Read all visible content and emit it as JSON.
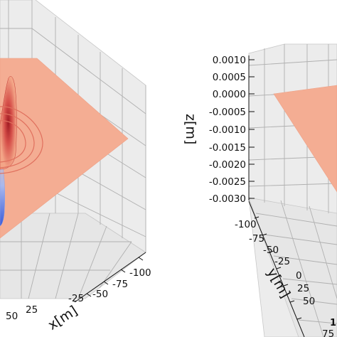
{
  "colors": {
    "pane": "#ececec",
    "surface_high": "#c0282d",
    "surface_mid": "#f4a98b",
    "surface_low": "#4a6fe3",
    "grid": "#b0b0b0"
  },
  "chart_data": [
    {
      "type": "surface",
      "title": "",
      "xlabel": "x[m]",
      "ylabel": "",
      "zlabel": "",
      "x_ticks": [
        "-100",
        "-75",
        "-50",
        "-25",
        "25",
        "50"
      ],
      "y_ticks": [],
      "z_ticks": [],
      "grid": true,
      "colormap": "coolwarm",
      "description_values": {
        "peak_x": 0,
        "peak_y": 0
      }
    },
    {
      "type": "surface",
      "title": "",
      "xlabel": "",
      "ylabel": "y[m]",
      "zlabel": "z[m]",
      "z_ticks": [
        "0.0010",
        "0.0005",
        "0.0000",
        "-0.0005",
        "-0.0010",
        "-0.0015",
        "-0.0020",
        "-0.0025",
        "-0.0030"
      ],
      "y_ticks": [
        "-100",
        "-75",
        "-50",
        "-25",
        "0",
        "25",
        "50",
        "75"
      ],
      "x_ticks_partial": [
        "1",
        "75"
      ],
      "zlim": [
        -0.003,
        0.001
      ],
      "grid": true,
      "colormap": "coolwarm"
    }
  ]
}
